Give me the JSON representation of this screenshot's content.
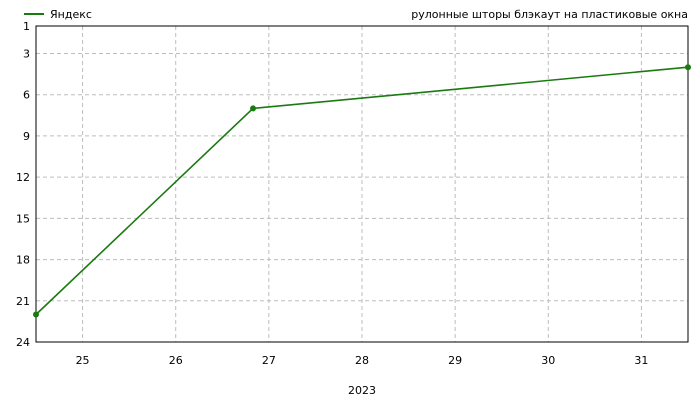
{
  "chart_data": {
    "type": "line",
    "title": "рулонные шторы блэкаут на пластиковые окна",
    "xlabel": "2023",
    "ylabel": "",
    "x_ticks": [
      "25",
      "26",
      "27",
      "28",
      "29",
      "30",
      "31"
    ],
    "y_ticks": [
      "1",
      "3",
      "6",
      "9",
      "12",
      "15",
      "18",
      "21",
      "24"
    ],
    "xlim": [
      24.5,
      31.5
    ],
    "ylim": [
      1,
      24
    ],
    "y_inverted": true,
    "grid": true,
    "legend_position": "top-left",
    "series": [
      {
        "name": "Яндекс",
        "color": "#1a7a10",
        "points": [
          {
            "x": 24.5,
            "y": 22
          },
          {
            "x": 26.83,
            "y": 7
          },
          {
            "x": 31.5,
            "y": 4
          }
        ]
      }
    ]
  }
}
